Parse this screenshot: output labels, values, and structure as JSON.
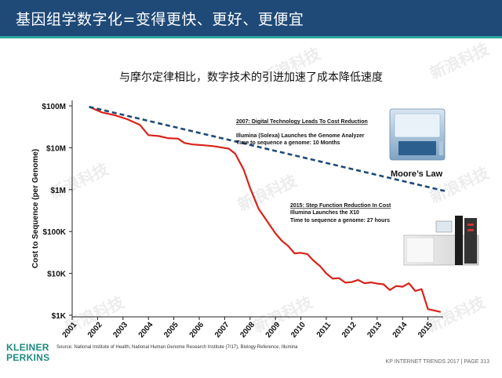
{
  "header": {
    "title": "基因组学数字化=变得更快、更好、更便宜",
    "accent": "#1f4a78",
    "underline_color": "#2aa8a0"
  },
  "subtitle": "与摩尔定律相比，数字技术的引进加速了成本降低速度",
  "chart_data": {
    "type": "line",
    "title": "",
    "xlabel": "",
    "ylabel": "Cost to Sequence (per Genome)",
    "y_scale": "log",
    "ylim": [
      1000,
      100000000
    ],
    "y_ticks": [
      {
        "value": 100000000,
        "label": "$100M"
      },
      {
        "value": 10000000,
        "label": "$10M"
      },
      {
        "value": 1000000,
        "label": "$1M"
      },
      {
        "value": 100000,
        "label": "$100K"
      },
      {
        "value": 10000,
        "label": "$10K"
      },
      {
        "value": 1000,
        "label": "$1K"
      }
    ],
    "x_ticks": [
      "2001",
      "2002",
      "2003",
      "2004",
      "2005",
      "2006",
      "2007",
      "2008",
      "2009",
      "2010",
      "2011",
      "2012",
      "2013",
      "2014",
      "2015"
    ],
    "series": [
      {
        "name": "",
        "color": "#d9221a",
        "style": "solid",
        "points": [
          [
            "2001-09",
            95000000
          ],
          [
            "2002-03",
            70000000
          ],
          [
            "2002-09",
            60000000
          ],
          [
            "2003-03",
            48000000
          ],
          [
            "2003-09",
            35000000
          ],
          [
            "2004-01",
            20000000
          ],
          [
            "2004-06",
            19000000
          ],
          [
            "2004-10",
            17000000
          ],
          [
            "2005-03",
            16500000
          ],
          [
            "2005-06",
            13000000
          ],
          [
            "2005-10",
            12000000
          ],
          [
            "2006-03",
            11500000
          ],
          [
            "2006-07",
            11000000
          ],
          [
            "2006-10",
            10500000
          ],
          [
            "2007-03",
            9500000
          ],
          [
            "2007-06",
            7200000
          ],
          [
            "2007-10",
            3000000
          ],
          [
            "2008-01",
            1100000
          ],
          [
            "2008-05",
            350000
          ],
          [
            "2008-10",
            150000
          ],
          [
            "2009-01",
            90000
          ],
          [
            "2009-04",
            60000
          ],
          [
            "2009-07",
            45000
          ],
          [
            "2009-10",
            30000
          ],
          [
            "2010-01",
            31000
          ],
          [
            "2010-04",
            29000
          ],
          [
            "2010-07",
            20000
          ],
          [
            "2010-10",
            15000
          ],
          [
            "2011-01",
            10000
          ],
          [
            "2011-04",
            7500
          ],
          [
            "2011-07",
            7700
          ],
          [
            "2011-10",
            6000
          ],
          [
            "2012-01",
            6200
          ],
          [
            "2012-04",
            7000
          ],
          [
            "2012-07",
            5800
          ],
          [
            "2012-10",
            6100
          ],
          [
            "2013-01",
            5700
          ],
          [
            "2013-04",
            5500
          ],
          [
            "2013-07",
            4000
          ],
          [
            "2013-10",
            5000
          ],
          [
            "2014-01",
            4800
          ],
          [
            "2014-04",
            5800
          ],
          [
            "2014-07",
            3800
          ],
          [
            "2014-10",
            4200
          ],
          [
            "2015-01",
            1400
          ],
          [
            "2015-04",
            1300
          ],
          [
            "2015-07",
            1200
          ]
        ]
      },
      {
        "name": "Moore’s Law",
        "color": "#1f4a78",
        "style": "dashed",
        "points": [
          [
            "2001-09",
            95000000
          ],
          [
            "2015-10",
            900000
          ]
        ]
      }
    ],
    "annotations": [
      {
        "title": "2007: Digital Technology Leads To Cost Reduction",
        "lines": [
          "Illumina (Solexa) Launches the Genome Analyzer",
          "Time to sequence a genome: 10 Months"
        ]
      },
      {
        "title": "2015: Step Function Reduction In Cost",
        "lines": [
          "Illumina Launches the X10",
          "Time to sequence a genome: 27 hours"
        ]
      }
    ],
    "grid": false,
    "legend": "none"
  },
  "source": "Source: National Institute of Health, National Human Genome Research Institute (7/17), Biology Reference, Illumina",
  "brand": {
    "line1": "KLEINER",
    "line2": "PERKINS"
  },
  "footer": "KP INTERNET TRENDS 2017   |   PAGE 313",
  "watermark": "新浪科技"
}
